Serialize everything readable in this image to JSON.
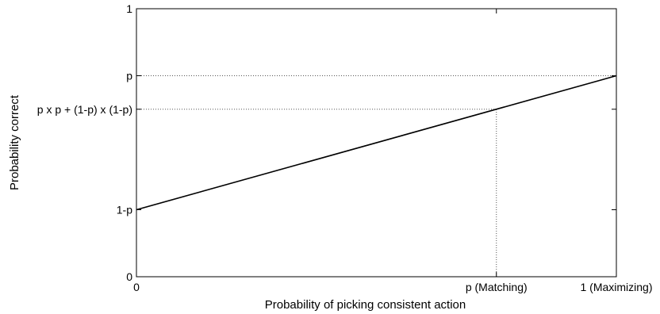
{
  "chart_data": {
    "type": "line",
    "title": "",
    "xlabel": "Probability of picking consistent action",
    "ylabel": "Probability correct",
    "xlim": [
      0,
      1
    ],
    "ylim": [
      0,
      1
    ],
    "p": 0.75,
    "x_ticks": [
      {
        "value": 0,
        "label": "0"
      },
      {
        "value": 0.75,
        "label": "p (Matching)"
      },
      {
        "value": 1,
        "label": "1 (Maximizing)"
      }
    ],
    "y_ticks": [
      {
        "value": 0,
        "label": "0"
      },
      {
        "value": 0.25,
        "label": "1-p"
      },
      {
        "value": 0.625,
        "label": "p x p + (1-p) x (1-p)"
      },
      {
        "value": 0.75,
        "label": "p"
      },
      {
        "value": 1,
        "label": "1"
      }
    ],
    "series": [
      {
        "x": [
          0,
          1
        ],
        "y": [
          0.25,
          0.75
        ]
      }
    ],
    "reference_lines": [
      {
        "orientation": "horizontal",
        "y": 0.75,
        "x_from": 0,
        "x_to": 1
      },
      {
        "orientation": "horizontal",
        "y": 0.625,
        "x_from": 0,
        "x_to": 0.75
      },
      {
        "orientation": "vertical",
        "x": 0.75,
        "y_from": 0,
        "y_to": 0.625
      }
    ],
    "grid": false,
    "legend": "none",
    "colors": {
      "line": "#000000",
      "axes": "#000000",
      "reference": "#555555"
    }
  }
}
